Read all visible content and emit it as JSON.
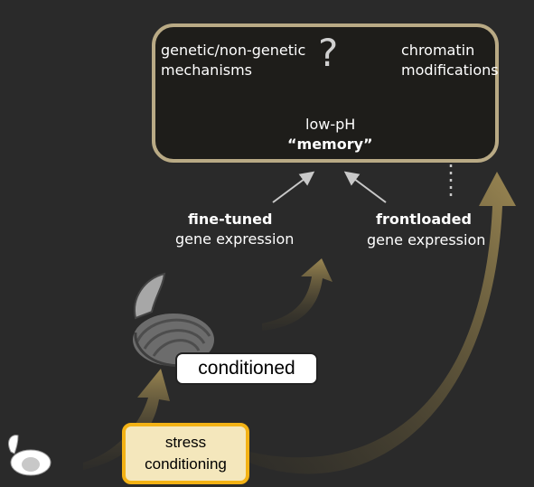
{
  "memory": {
    "question_mark": "?",
    "factor_left_line1": "genetic/non-genetic",
    "factor_left_line2": "mechanisms",
    "factor_right_line1": "chromatin",
    "factor_right_line2": "modifications",
    "center_line1": "low-pH",
    "center_line2": "“memory”"
  },
  "expression": {
    "fine_tuned_bold": "fine-tuned",
    "fine_tuned_rest": "gene expression",
    "frontloaded_bold": "frontloaded",
    "frontloaded_rest": "gene expression"
  },
  "labels": {
    "conditioned": "conditioned",
    "stress_line1": "stress",
    "stress_line2": "conditioning"
  },
  "colors": {
    "background": "#2a2a2a",
    "memory_border": "#b9aa85",
    "arrow_gold": "#8a7a4e",
    "stress_fill": "#f4e7bc",
    "stress_border": "#f3b215"
  }
}
